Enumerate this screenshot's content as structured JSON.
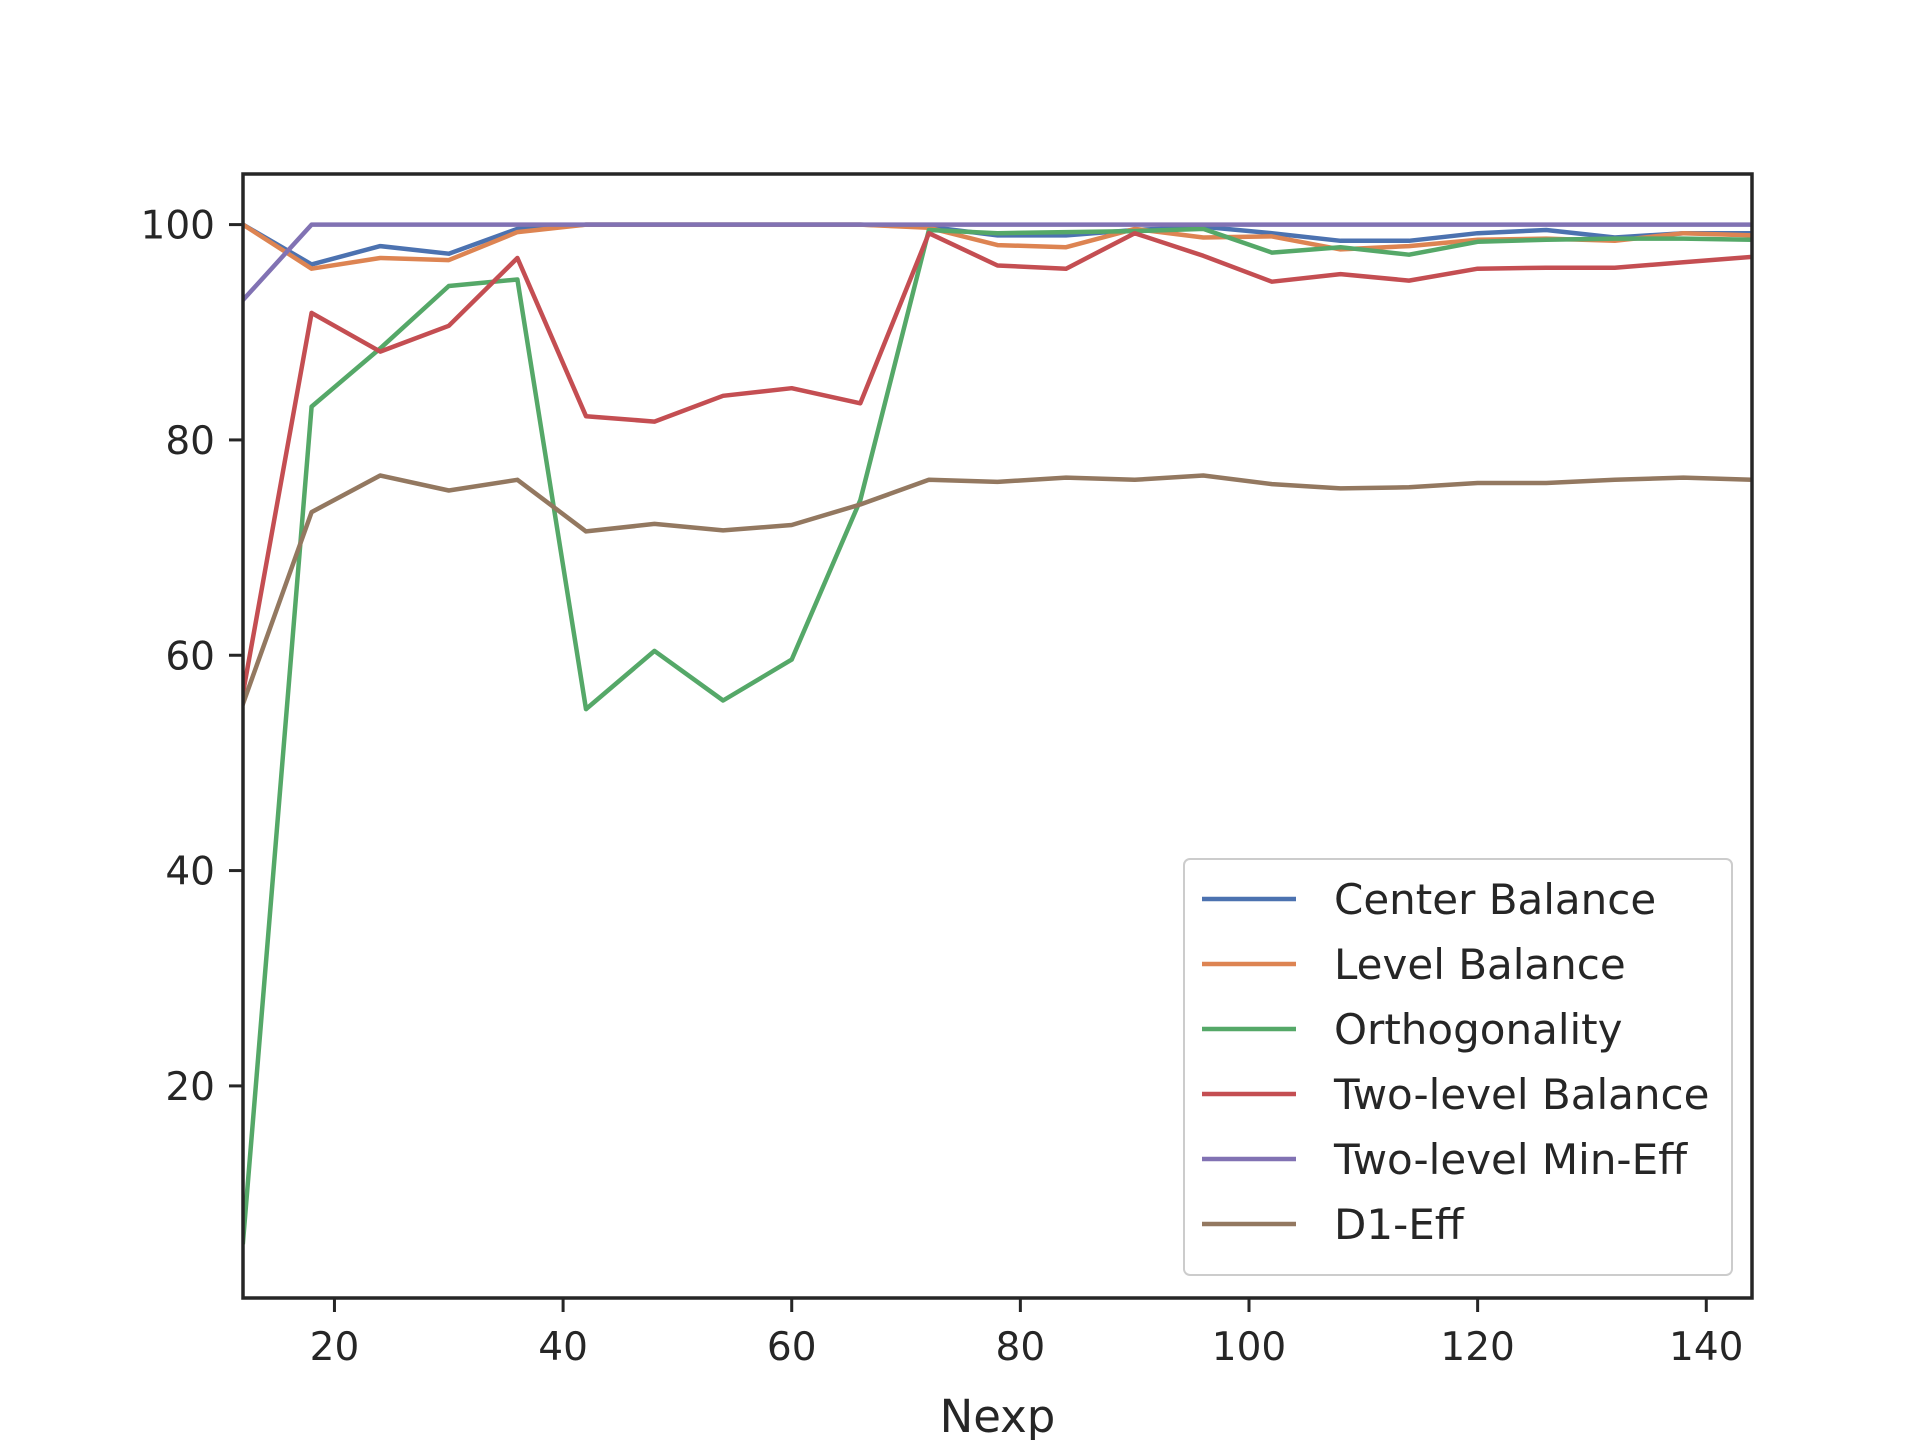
{
  "chart_data": {
    "type": "line",
    "title": "",
    "xlabel": "Nexp",
    "ylabel": "",
    "xlim": [
      12,
      144
    ],
    "ylim": [
      0.3,
      104.7
    ],
    "xticks": [
      20,
      40,
      60,
      80,
      100,
      120,
      140
    ],
    "yticks": [
      20,
      40,
      60,
      80,
      100
    ],
    "grid": false,
    "legend_position": "lower right",
    "x": [
      12,
      18,
      24,
      30,
      36,
      42,
      48,
      54,
      60,
      66,
      72,
      78,
      84,
      90,
      96,
      102,
      108,
      114,
      120,
      126,
      132,
      138,
      144
    ],
    "series": [
      {
        "name": "Center Balance",
        "color": "#4c72b0",
        "values": [
          100,
          96.3,
          98.0,
          97.3,
          99.6,
          100,
          100,
          100,
          100,
          100,
          99.8,
          99.0,
          99.0,
          99.5,
          99.8,
          99.2,
          98.5,
          98.5,
          99.2,
          99.5,
          98.8,
          99.2,
          99.2
        ]
      },
      {
        "name": "Level Balance",
        "color": "#dd8452",
        "values": [
          100,
          95.9,
          96.9,
          96.7,
          99.3,
          100,
          100,
          100,
          100,
          100,
          99.7,
          98.1,
          97.9,
          99.6,
          98.8,
          98.9,
          97.7,
          98.0,
          98.6,
          98.7,
          98.5,
          99.2,
          99.0
        ]
      },
      {
        "name": "Orthogonality",
        "color": "#55a868",
        "values": [
          5.5,
          83.1,
          88.5,
          94.3,
          94.9,
          55.0,
          60.4,
          55.8,
          59.6,
          74.4,
          99.5,
          99.2,
          99.3,
          99.4,
          99.6,
          97.4,
          97.9,
          97.2,
          98.4,
          98.6,
          98.7,
          98.7,
          98.6
        ]
      },
      {
        "name": "Two-level Balance",
        "color": "#c44e52",
        "values": [
          56.5,
          91.8,
          88.2,
          90.6,
          96.9,
          82.2,
          81.7,
          84.1,
          84.8,
          83.4,
          99.2,
          96.2,
          95.9,
          99.2,
          97.1,
          94.7,
          95.4,
          94.8,
          95.9,
          96.0,
          96.0,
          96.5,
          97.0
        ]
      },
      {
        "name": "Two-level Min-Eff",
        "color": "#8172b3",
        "values": [
          93.0,
          100,
          100,
          100,
          100,
          100,
          100,
          100,
          100,
          100,
          100,
          100,
          100,
          100,
          100,
          100,
          100,
          100,
          100,
          100,
          100,
          100,
          100
        ]
      },
      {
        "name": "D1-Eff",
        "color": "#937860",
        "values": [
          55.5,
          73.3,
          76.7,
          75.3,
          76.3,
          71.5,
          72.2,
          71.6,
          72.1,
          74.0,
          76.3,
          76.1,
          76.5,
          76.3,
          76.7,
          75.9,
          75.5,
          75.6,
          76.0,
          76.0,
          76.3,
          76.5,
          76.3
        ]
      }
    ]
  }
}
